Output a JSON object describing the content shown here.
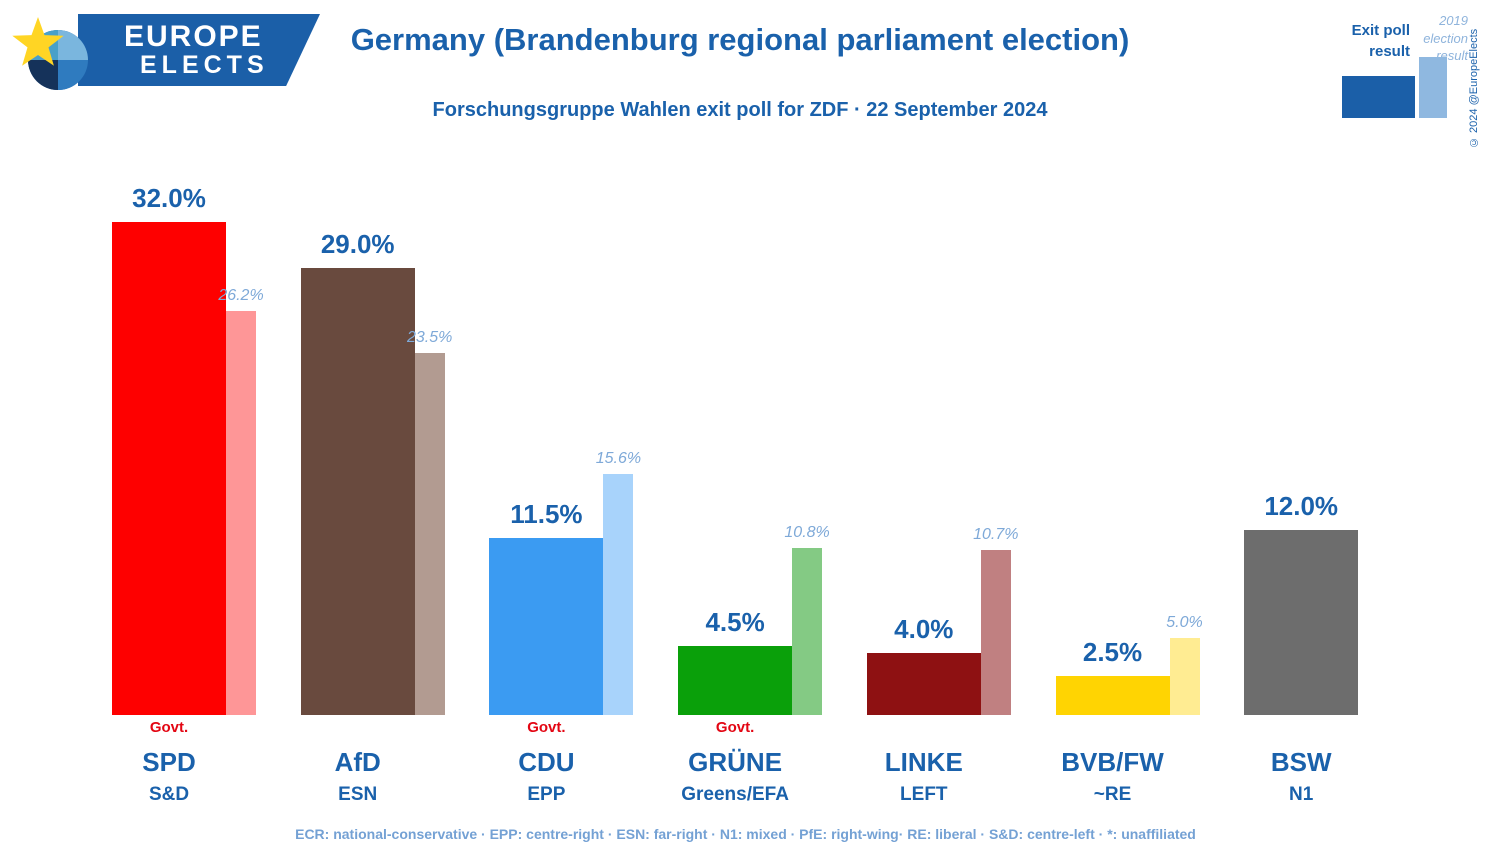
{
  "brand": {
    "line1": "EUROPE",
    "line2": "ELECTS"
  },
  "header": {
    "title": "Germany (Brandenburg regional parliament election)",
    "subtitle": "Forschungsgruppe Wahlen exit poll for ZDF · 22 September 2024"
  },
  "legend": {
    "exit": "Exit poll result",
    "previous": "2019 election result"
  },
  "copyright": "© 2024 @EuropeElects",
  "footer": "ECR: national-conservative · EPP: centre-right · ESN: far-right · N1: mixed · PfE: right-wing· RE: liberal · S&D: centre-left · *: unaffiliated",
  "chart_data": {
    "type": "bar",
    "title": "Germany (Brandenburg regional parliament election)",
    "subtitle": "Forschungsgruppe Wahlen exit poll for ZDF · 22 September 2024",
    "categories": [
      "SPD",
      "AfD",
      "CDU",
      "GRÜNE",
      "LINKE",
      "BVB/FW",
      "BSW"
    ],
    "series": [
      {
        "name": "Exit poll result",
        "values": [
          32.0,
          29.0,
          11.5,
          4.5,
          4.0,
          2.5,
          12.0
        ]
      },
      {
        "name": "2019 election result",
        "values": [
          26.2,
          23.5,
          15.6,
          10.8,
          10.7,
          5.0,
          null
        ]
      }
    ],
    "ylim": [
      0,
      35
    ],
    "grid": false,
    "legend_position": "top-right",
    "govt_label": "Govt.",
    "parties": [
      {
        "name": "SPD",
        "group": "S&D",
        "exit": 32.0,
        "exit_label": "32.0%",
        "prev": 26.2,
        "prev_label": "26.2%",
        "govt": true,
        "color": "#fe0000",
        "color_light": "#fe9697"
      },
      {
        "name": "AfD",
        "group": "ESN",
        "exit": 29.0,
        "exit_label": "29.0%",
        "prev": 23.5,
        "prev_label": "23.5%",
        "govt": false,
        "color": "#694a3e",
        "color_light": "#b29b91"
      },
      {
        "name": "CDU",
        "group": "EPP",
        "exit": 11.5,
        "exit_label": "11.5%",
        "prev": 15.6,
        "prev_label": "15.6%",
        "govt": true,
        "color": "#3b9bf2",
        "color_light": "#a8d3fb"
      },
      {
        "name": "GRÜNE",
        "group": "Greens/EFA",
        "exit": 4.5,
        "exit_label": "4.5%",
        "prev": 10.8,
        "prev_label": "10.8%",
        "govt": true,
        "color": "#0aa00a",
        "color_light": "#84ca84"
      },
      {
        "name": "LINKE",
        "group": "LEFT",
        "exit": 4.0,
        "exit_label": "4.0%",
        "prev": 10.7,
        "prev_label": "10.7%",
        "govt": false,
        "color": "#8e1112",
        "color_light": "#c08081"
      },
      {
        "name": "BVB/FW",
        "group": "~RE",
        "exit": 2.5,
        "exit_label": "2.5%",
        "prev": 5.0,
        "prev_label": "5.0%",
        "govt": false,
        "color": "#ffd402",
        "color_light": "#ffec92"
      },
      {
        "name": "BSW",
        "group": "N1",
        "exit": 12.0,
        "exit_label": "12.0%",
        "prev": null,
        "prev_label": null,
        "govt": false,
        "color": "#6d6d6d",
        "color_light": null
      }
    ]
  }
}
